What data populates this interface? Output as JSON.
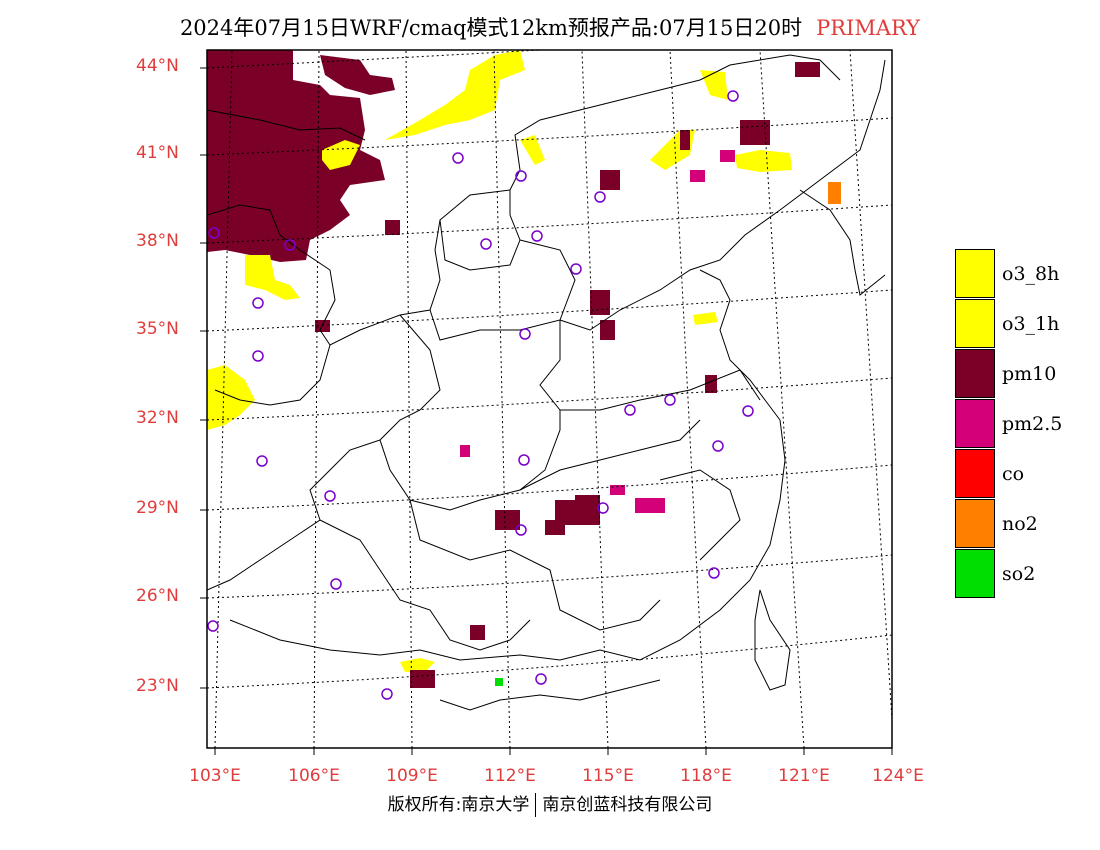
{
  "header": {
    "title": "2024年07月15日WRF/cmaq模式12km预报产品:07月15日20时",
    "mode": "PRIMARY"
  },
  "map": {
    "lat_labels": [
      "44°N",
      "41°N",
      "38°N",
      "35°N",
      "32°N",
      "29°N",
      "26°N",
      "23°N"
    ],
    "lon_labels": [
      "103°E",
      "106°E",
      "109°E",
      "112°E",
      "115°E",
      "118°E",
      "121°E",
      "124°E"
    ]
  },
  "legend": {
    "items": [
      {
        "label": "o3_8h",
        "color": "#ffff00"
      },
      {
        "label": "o3_1h",
        "color": "#ffff00"
      },
      {
        "label": "pm10",
        "color": "#7a0028"
      },
      {
        "label": "pm2.5",
        "color": "#d4007a"
      },
      {
        "label": "co",
        "color": "#ff0000"
      },
      {
        "label": "no2",
        "color": "#ff7f00"
      },
      {
        "label": "so2",
        "color": "#00dd00"
      }
    ]
  },
  "footer": {
    "left": "版权所有:南京大学",
    "right": "南京创蓝科技有限公司"
  },
  "colors": {
    "accent_label": "#e03c3c",
    "o3": "#ffff00",
    "pm10": "#7a0028",
    "pm25": "#d4007a",
    "no2": "#ff7f00",
    "so2": "#00dd00",
    "station_marker": "#7a00cc"
  }
}
